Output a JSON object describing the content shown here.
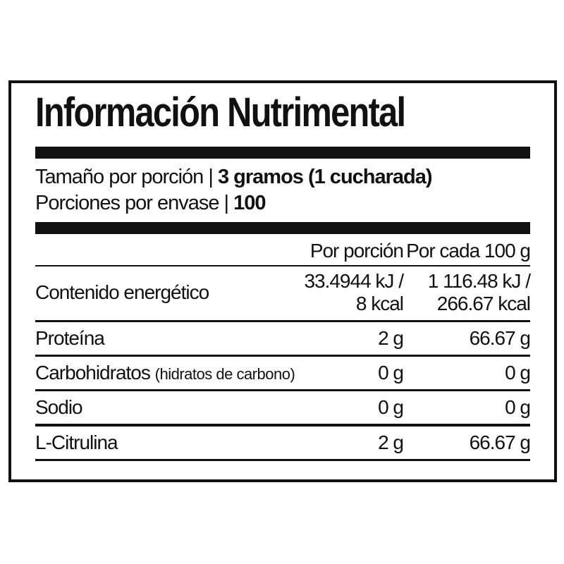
{
  "colors": {
    "ink": "#111111",
    "background": "#ffffff"
  },
  "label": {
    "title": "Información Nutrimental",
    "serving_info": [
      {
        "label": "Tamaño por porción |",
        "value": "3 gramos (1 cucharada)"
      },
      {
        "label": "Porciones por envase |",
        "value": "100"
      }
    ],
    "table": {
      "column_headers": [
        "Por porción",
        "Por cada 100 g"
      ],
      "energy_row": {
        "name": "Contenido energético",
        "per_serving": [
          "33.4944 kJ /",
          "8 kcal"
        ],
        "per_100g": [
          "1 116.48 kJ /",
          "266.67 kcal"
        ]
      },
      "rows": [
        {
          "name": "Proteína",
          "note": "",
          "per_serving": "2 g",
          "per_100g": "66.67 g"
        },
        {
          "name": "Carbohidratos",
          "note": "(hidratos de carbono)",
          "per_serving": "0 g",
          "per_100g": "0 g"
        },
        {
          "name": "Sodio",
          "note": "",
          "per_serving": "0 g",
          "per_100g": "0 g"
        },
        {
          "name": "L-Citrulina",
          "note": "",
          "per_serving": "2 g",
          "per_100g": "66.67 g"
        }
      ]
    }
  }
}
